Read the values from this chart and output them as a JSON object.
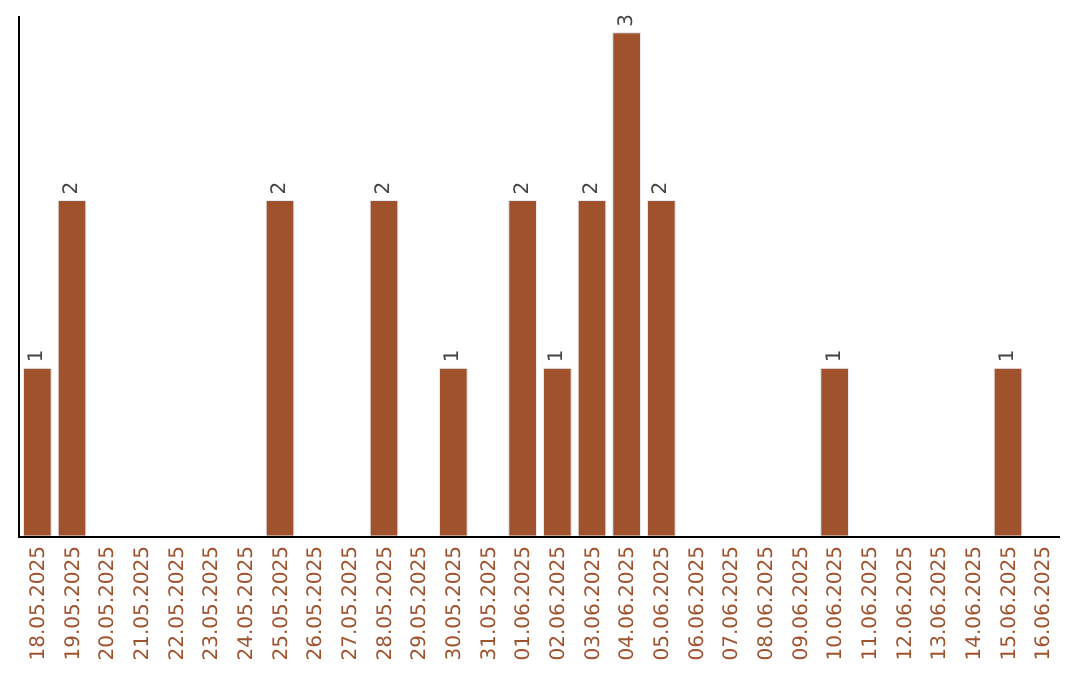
{
  "chart_data": {
    "type": "bar",
    "categories": [
      "18.05.2025",
      "19.05.2025",
      "20.05.2025",
      "21.05.2025",
      "22.05.2025",
      "23.05.2025",
      "24.05.2025",
      "25.05.2025",
      "26.05.2025",
      "27.05.2025",
      "28.05.2025",
      "29.05.2025",
      "30.05.2025",
      "31.05.2025",
      "01.06.2025",
      "02.06.2025",
      "03.06.2025",
      "04.06.2025",
      "05.06.2025",
      "06.06.2025",
      "07.06.2025",
      "08.06.2025",
      "09.06.2025",
      "10.06.2025",
      "11.06.2025",
      "12.06.2025",
      "13.06.2025",
      "14.06.2025",
      "15.06.2025",
      "16.06.2025"
    ],
    "values": [
      1,
      2,
      null,
      null,
      null,
      null,
      null,
      2,
      null,
      null,
      2,
      null,
      1,
      null,
      2,
      1,
      2,
      3,
      2,
      null,
      null,
      null,
      null,
      1,
      null,
      null,
      null,
      null,
      1,
      null
    ],
    "value_labels": [
      "1",
      "2",
      null,
      null,
      null,
      null,
      null,
      "2",
      null,
      null,
      "2",
      null,
      "1",
      null,
      "2",
      "1",
      "2",
      "3",
      "2",
      null,
      null,
      null,
      null,
      "1",
      null,
      null,
      null,
      null,
      "1",
      null
    ],
    "color": "#a0522d",
    "ylim": [
      0,
      3.1
    ],
    "tick_labels": "x"
  }
}
